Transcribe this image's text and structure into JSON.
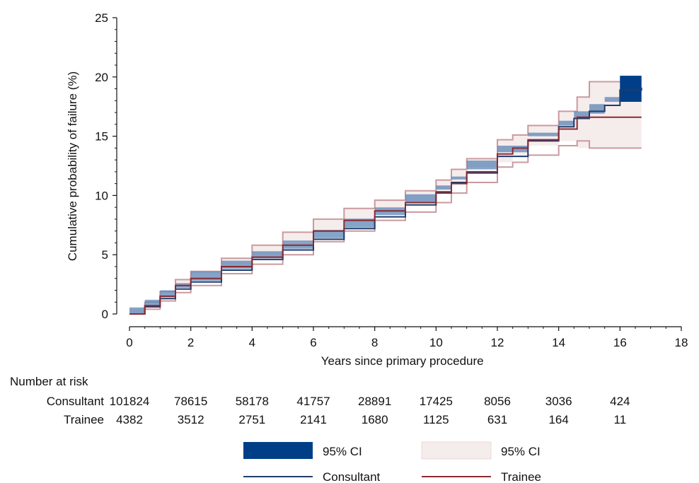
{
  "chart_data": {
    "type": "line",
    "xlabel": "Years since primary procedure",
    "ylabel": "Cumulative probability of failure (%)",
    "xlim": [
      0,
      18
    ],
    "ylim": [
      0,
      25
    ],
    "xticks": [
      0,
      2,
      4,
      6,
      8,
      10,
      12,
      14,
      16,
      18
    ],
    "yticks": [
      0,
      5,
      10,
      15,
      20,
      25
    ],
    "grid": false,
    "colors": {
      "consultant_line": "#1f3d6b",
      "consultant_ci": "#003f87",
      "trainee_line": "#8b2a32",
      "trainee_ci_fill": "#f5ecec",
      "trainee_ci_edge": "#c99aa0"
    },
    "series": [
      {
        "name": "Consultant",
        "x": [
          0,
          0.5,
          1,
          1.5,
          2,
          3,
          4,
          5,
          6,
          7,
          8,
          9,
          10,
          10.5,
          11,
          12,
          13,
          14,
          14.5,
          15,
          15.5,
          16,
          16.7
        ],
        "y": [
          0,
          0.6,
          1.3,
          2.1,
          2.7,
          3.7,
          4.6,
          5.4,
          6.3,
          7.2,
          8.2,
          9.2,
          10.3,
          11.1,
          11.9,
          13.3,
          14.6,
          15.8,
          16.5,
          17.1,
          17.6,
          18.9,
          19.1
        ],
        "ci_lower": [
          0,
          0.55,
          1.2,
          2.0,
          2.6,
          3.6,
          4.5,
          5.3,
          6.2,
          7.1,
          8.05,
          9.0,
          10.1,
          10.85,
          11.6,
          12.95,
          14.2,
          15.3,
          15.9,
          16.5,
          16.9,
          17.9,
          17.9
        ],
        "ci_upper": [
          0,
          0.65,
          1.4,
          2.2,
          2.8,
          3.8,
          4.7,
          5.5,
          6.4,
          7.3,
          8.35,
          9.4,
          10.5,
          11.35,
          12.2,
          13.65,
          15.0,
          16.3,
          17.1,
          17.7,
          18.3,
          20.1,
          20.1
        ]
      },
      {
        "name": "Trainee",
        "x": [
          0,
          0.5,
          1,
          1.5,
          2,
          3,
          4,
          5,
          6,
          7,
          8,
          9,
          10,
          10.5,
          11,
          12,
          12.5,
          13,
          14,
          14.6,
          15,
          16,
          16.7
        ],
        "y": [
          0,
          0.7,
          1.5,
          2.4,
          3.0,
          4.0,
          4.8,
          5.8,
          7.0,
          7.9,
          8.7,
          9.4,
          10.2,
          11.0,
          12.0,
          13.5,
          14.0,
          14.7,
          15.6,
          16.6,
          16.6,
          16.6,
          16.6
        ],
        "ci_lower": [
          0,
          0.4,
          1.1,
          1.8,
          2.4,
          3.4,
          4.2,
          5.0,
          6.1,
          7.0,
          7.9,
          8.6,
          9.4,
          10.2,
          11.1,
          12.4,
          12.8,
          13.4,
          14.2,
          14.6,
          14.0,
          14.0,
          14.0
        ],
        "ci_upper": [
          0,
          1.0,
          1.9,
          2.9,
          3.6,
          4.7,
          5.8,
          6.9,
          8.0,
          8.9,
          9.6,
          10.4,
          11.3,
          12.2,
          13.1,
          14.7,
          15.1,
          15.9,
          17.1,
          18.3,
          19.6,
          19.6,
          19.6
        ]
      }
    ],
    "risk_table": {
      "title": "Number at risk",
      "x": [
        0,
        2,
        4,
        6,
        8,
        10,
        12,
        14,
        16
      ],
      "rows": [
        {
          "label": "Consultant",
          "values": [
            "101824",
            "78615",
            "58178",
            "41757",
            "28891",
            "17425",
            "8056",
            "3036",
            "424"
          ]
        },
        {
          "label": "Trainee",
          "values": [
            "4382",
            "3512",
            "2751",
            "2141",
            "1680",
            "1125",
            "631",
            "164",
            "11"
          ]
        }
      ]
    },
    "legend": {
      "placement": "bottom",
      "items": [
        {
          "label": "95% CI",
          "kind": "band",
          "color": "#003f87"
        },
        {
          "label": "95% CI",
          "kind": "band",
          "color": "#f5ecec"
        },
        {
          "label": "Consultant",
          "kind": "line",
          "color": "#1f3d6b"
        },
        {
          "label": "Trainee",
          "kind": "line",
          "color": "#8b2a32"
        }
      ]
    }
  }
}
